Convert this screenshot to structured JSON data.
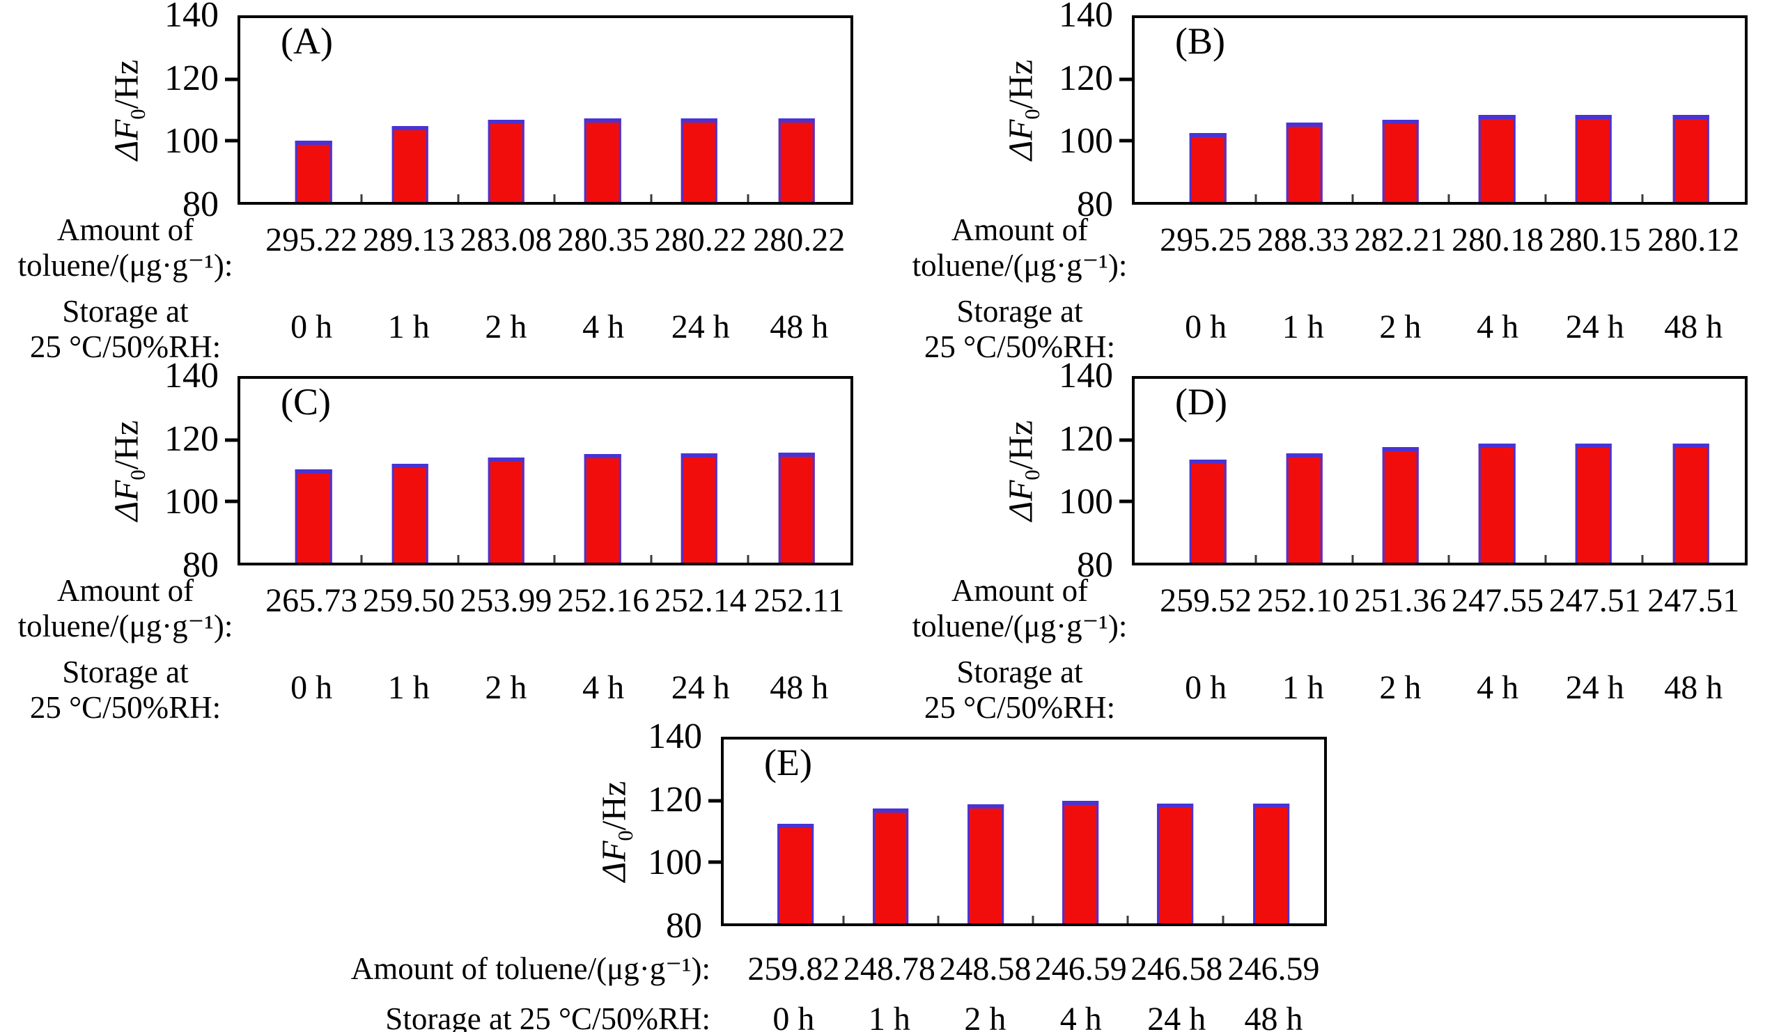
{
  "figure": {
    "y_axis": {
      "prefix": "ΔF",
      "sub": "0",
      "suffix": "/Hz",
      "ticks": [
        "140",
        "120",
        "100",
        "80"
      ],
      "min": 80,
      "max": 140
    },
    "row_labels": {
      "amount_line1": "Amount of",
      "amount_line2": "toluene/(μg·g⁻¹):",
      "storage_line1": "Storage at",
      "storage_line2": "25 °C/50%RH:",
      "amount_single": "Amount of toluene/(μg·g⁻¹):",
      "storage_single": "Storage at 25 °C/50%RH:"
    },
    "colors": {
      "bar_fill": "#f20d0d",
      "bar_edge": "#4a33d4",
      "axis": "#000000"
    },
    "layout": {
      "bar_centers": [
        12,
        27.8,
        43.6,
        59.4,
        75.2,
        91.2
      ],
      "xtick_pos": [
        19.9,
        35.7,
        51.5,
        67.3,
        83.2
      ]
    }
  },
  "chart_data": [
    {
      "type": "bar",
      "panel": "(A)",
      "ylabel": "ΔF₀/Hz",
      "ylim": [
        80,
        140
      ],
      "yticks": [
        80,
        100,
        120,
        140
      ],
      "grid": false,
      "legend": "none",
      "categories_label": "Storage at 25 °C/50%RH:",
      "categories": [
        "0 h",
        "1 h",
        "2 h",
        "4 h",
        "24 h",
        "48 h"
      ],
      "values": [
        100.0,
        104.8,
        106.8,
        107.3,
        107.3,
        107.3
      ],
      "amounts_label": "Amount of toluene/(μg·g⁻¹):",
      "amounts": [
        "295.22",
        "289.13",
        "283.08",
        "280.35",
        "280.22",
        "280.22"
      ]
    },
    {
      "type": "bar",
      "panel": "(B)",
      "ylabel": "ΔF₀/Hz",
      "ylim": [
        80,
        140
      ],
      "yticks": [
        80,
        100,
        120,
        140
      ],
      "grid": false,
      "legend": "none",
      "categories_label": "Storage at 25 °C/50%RH:",
      "categories": [
        "0 h",
        "1 h",
        "2 h",
        "4 h",
        "24 h",
        "48 h"
      ],
      "values": [
        102.4,
        105.8,
        106.8,
        108.4,
        108.4,
        108.4
      ],
      "amounts_label": "Amount of toluene/(μg·g⁻¹):",
      "amounts": [
        "295.25",
        "288.33",
        "282.21",
        "280.18",
        "280.15",
        "280.12"
      ]
    },
    {
      "type": "bar",
      "panel": "(C)",
      "ylabel": "ΔF₀/Hz",
      "ylim": [
        80,
        140
      ],
      "yticks": [
        80,
        100,
        120,
        140
      ],
      "grid": false,
      "legend": "none",
      "categories_label": "Storage at 25 °C/50%RH:",
      "categories": [
        "0 h",
        "1 h",
        "2 h",
        "4 h",
        "24 h",
        "48 h"
      ],
      "values": [
        110.4,
        112.2,
        114.3,
        115.4,
        115.6,
        115.8
      ],
      "amounts_label": "Amount of toluene/(μg·g⁻¹):",
      "amounts": [
        "265.73",
        "259.50",
        "253.99",
        "252.16",
        "252.14",
        "252.11"
      ]
    },
    {
      "type": "bar",
      "panel": "(D)",
      "ylabel": "ΔF₀/Hz",
      "ylim": [
        80,
        140
      ],
      "yticks": [
        80,
        100,
        120,
        140
      ],
      "grid": false,
      "legend": "none",
      "categories_label": "Storage at 25 °C/50%RH:",
      "categories": [
        "0 h",
        "1 h",
        "2 h",
        "4 h",
        "24 h",
        "48 h"
      ],
      "values": [
        113.6,
        115.7,
        117.7,
        118.8,
        118.8,
        118.8
      ],
      "amounts_label": "Amount of toluene/(μg·g⁻¹):",
      "amounts": [
        "259.52",
        "252.10",
        "251.36",
        "247.55",
        "247.51",
        "247.51"
      ]
    },
    {
      "type": "bar",
      "panel": "(E)",
      "ylabel": "ΔF₀/Hz",
      "ylim": [
        80,
        140
      ],
      "yticks": [
        80,
        100,
        120,
        140
      ],
      "grid": false,
      "legend": "none",
      "categories_label": "Storage at 25 °C/50%RH:",
      "categories": [
        "0 h",
        "1 h",
        "2 h",
        "4 h",
        "24 h",
        "48 h"
      ],
      "values": [
        112.5,
        117.5,
        118.9,
        120.0,
        119.0,
        119.0
      ],
      "amounts_label": "Amount of toluene/(μg·g⁻¹):",
      "amounts": [
        "259.82",
        "248.78",
        "248.58",
        "246.59",
        "246.58",
        "246.59"
      ]
    }
  ]
}
